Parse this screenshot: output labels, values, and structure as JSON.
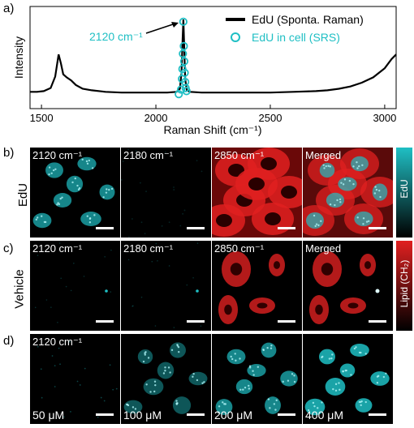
{
  "panels": {
    "a": "a)",
    "b": "b)",
    "c": "c)",
    "d": "d)"
  },
  "chart_data": {
    "type": "line",
    "xlabel": "Raman Shift (cm⁻¹)",
    "ylabel": "Intensity",
    "xlim": [
      1450,
      3050
    ],
    "ylim": [
      0,
      1
    ],
    "xticks": [
      1500,
      2000,
      2500,
      3000
    ],
    "xtick_labels": [
      "1500",
      "2000",
      "2500",
      "3000"
    ],
    "legend_position": "top-right",
    "annotation": "2120 cm⁻¹",
    "series": [
      {
        "name": "EdU (Sponta. Raman)",
        "style": "line",
        "color": "#000000",
        "x": [
          1450,
          1480,
          1510,
          1540,
          1560,
          1575,
          1585,
          1595,
          1610,
          1630,
          1650,
          1680,
          1720,
          1780,
          1850,
          1950,
          2050,
          2090,
          2105,
          2112,
          2117,
          2120,
          2123,
          2128,
          2135,
          2150,
          2200,
          2300,
          2400,
          2500,
          2600,
          2700,
          2750,
          2800,
          2850,
          2900,
          2950,
          3000,
          3030,
          3050
        ],
        "y": [
          0.05,
          0.05,
          0.06,
          0.1,
          0.25,
          0.54,
          0.42,
          0.28,
          0.24,
          0.2,
          0.14,
          0.09,
          0.07,
          0.05,
          0.04,
          0.04,
          0.04,
          0.05,
          0.09,
          0.3,
          0.75,
          1.0,
          0.72,
          0.22,
          0.07,
          0.05,
          0.04,
          0.04,
          0.04,
          0.04,
          0.05,
          0.06,
          0.07,
          0.09,
          0.12,
          0.17,
          0.24,
          0.36,
          0.48,
          0.54
        ]
      },
      {
        "name": "EdU in cell (SRS)",
        "style": "markers",
        "color": "#1fbfc4",
        "x": [
          2100,
          2110,
          2114,
          2116,
          2118,
          2120,
          2122,
          2124,
          2126,
          2128,
          2130,
          2134
        ],
        "y": [
          0.02,
          0.08,
          0.22,
          0.35,
          0.55,
          0.97,
          0.65,
          0.45,
          0.3,
          0.18,
          0.1,
          0.06
        ]
      }
    ]
  },
  "row_b": {
    "label": "EdU",
    "tiles": [
      "2120 cm⁻¹",
      "2180 cm⁻¹",
      "2850 cm⁻¹",
      "Merged"
    ],
    "colorbar_label": "EdU",
    "colorbar_color": "#1fbfc4"
  },
  "row_c": {
    "label": "Vehicle",
    "tiles": [
      "2120 cm⁻¹",
      "2180 cm⁻¹",
      "2850 cm⁻¹",
      "Merged"
    ],
    "colorbar_label": "Lipid (CH₂)",
    "colorbar_color": "#e02020"
  },
  "row_d": {
    "tile_label": "2120 cm⁻¹",
    "concentrations": [
      "50 μM",
      "100 μM",
      "200 μM",
      "400 μM"
    ]
  },
  "colors": {
    "cyan": "#1fbfc4",
    "red": "#e02020"
  }
}
